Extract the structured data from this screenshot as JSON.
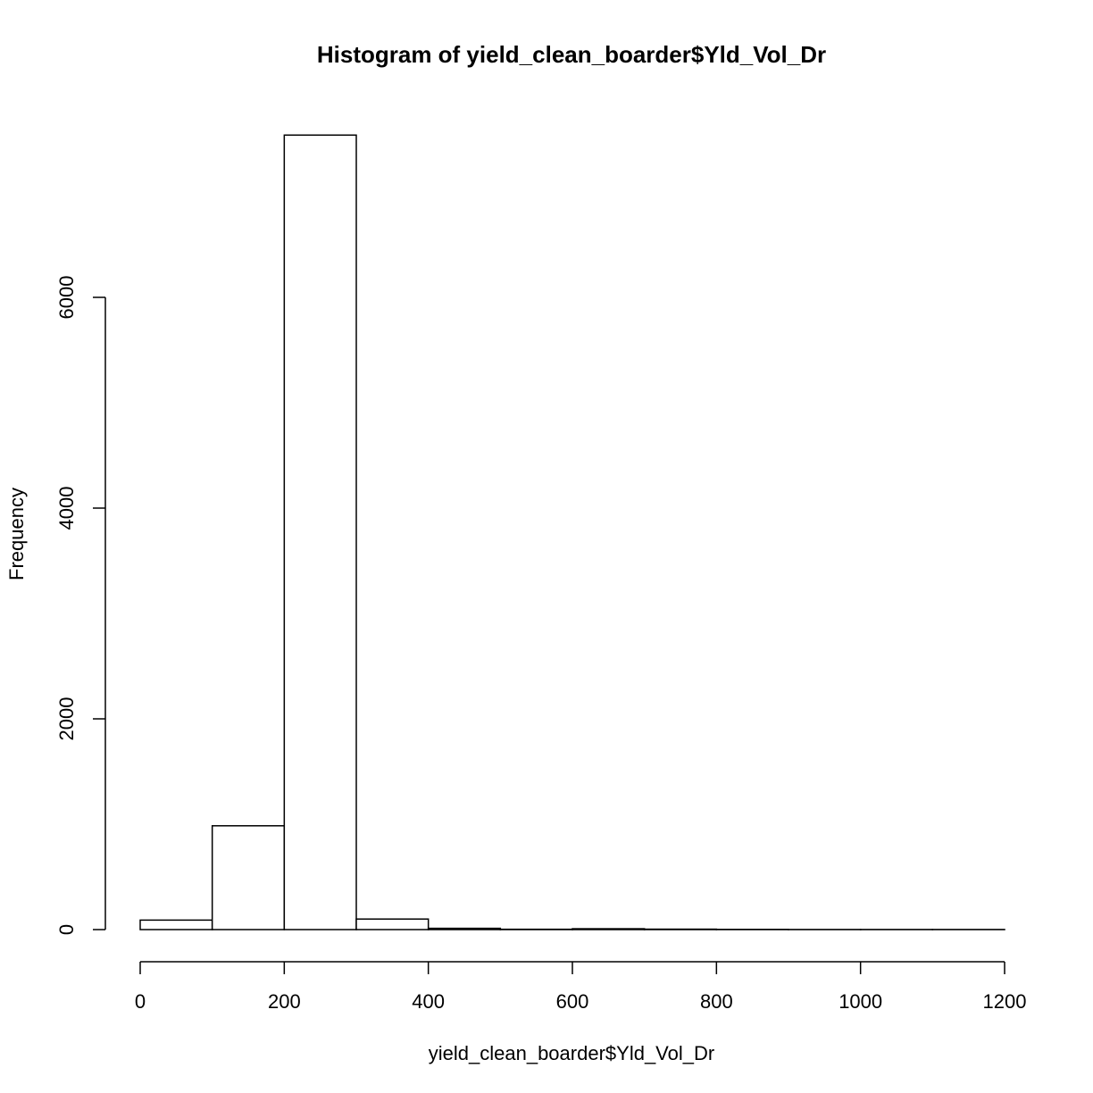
{
  "chart_data": {
    "type": "bar",
    "title": "Histogram of yield_clean_boarder$Yld_Vol_Dr",
    "xlabel": "yield_clean_boarder$Yld_Vol_Dr",
    "ylabel": "Frequency",
    "bins": [
      {
        "start": 0,
        "end": 100,
        "count": 90
      },
      {
        "start": 100,
        "end": 200,
        "count": 985
      },
      {
        "start": 200,
        "end": 300,
        "count": 7540
      },
      {
        "start": 300,
        "end": 400,
        "count": 100
      },
      {
        "start": 400,
        "end": 500,
        "count": 12
      },
      {
        "start": 500,
        "end": 600,
        "count": 3
      },
      {
        "start": 600,
        "end": 700,
        "count": 8
      },
      {
        "start": 700,
        "end": 800,
        "count": 4
      },
      {
        "start": 800,
        "end": 900,
        "count": 2
      },
      {
        "start": 900,
        "end": 1000,
        "count": 1
      },
      {
        "start": 1000,
        "end": 1100,
        "count": 1
      },
      {
        "start": 1100,
        "end": 1200,
        "count": 1
      }
    ],
    "xlim": [
      0,
      1200
    ],
    "ylim": [
      0,
      7540
    ],
    "x_ticks": [
      "0",
      "200",
      "400",
      "600",
      "800",
      "1000",
      "1200"
    ],
    "y_ticks": [
      "0",
      "2000",
      "4000",
      "6000"
    ],
    "grid": false,
    "colors": {
      "bar_fill": "#ffffff",
      "bar_stroke": "#000000"
    }
  }
}
